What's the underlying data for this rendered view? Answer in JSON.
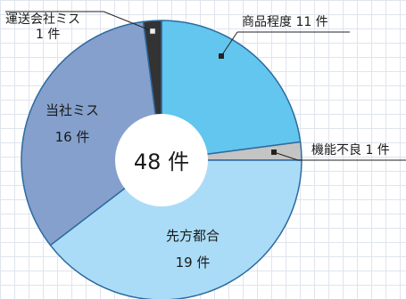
{
  "chart_data": {
    "type": "pie",
    "variant": "donut",
    "total_label": "48 件",
    "unit": "件",
    "slices": [
      {
        "name": "商品程度",
        "value": 11,
        "label": "商品程度 11 件",
        "color": "#62c6ef"
      },
      {
        "name": "機能不良",
        "value": 1,
        "label": "機能不良 1 件",
        "color": "#c4c4c4"
      },
      {
        "name": "先方都合",
        "value": 19,
        "label": "先方都合",
        "value_label": "19 件",
        "color": "#aadcf7"
      },
      {
        "name": "当社ミス",
        "value": 16,
        "label": "当社ミス",
        "value_label": "16 件",
        "color": "#85a0cc"
      },
      {
        "name": "運送会社ミス",
        "value": 1,
        "label": "運送会社ミス",
        "value_label": "1 件",
        "color": "#333333"
      }
    ]
  }
}
